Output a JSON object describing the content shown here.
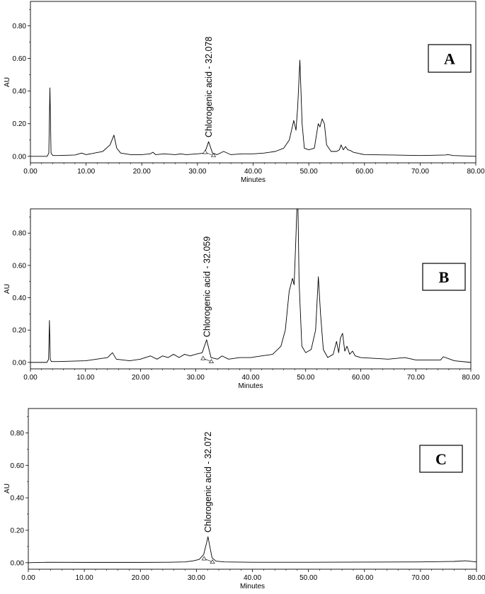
{
  "chart_data": [
    {
      "type": "line",
      "panel_label": "A",
      "xlabel": "Minutes",
      "ylabel": "AU",
      "xlim": [
        0,
        80
      ],
      "ylim": [
        -0.04,
        0.95
      ],
      "xticks": [
        0,
        10,
        20,
        30,
        40,
        50,
        60,
        70,
        80
      ],
      "xtick_labels": [
        "0.00",
        "10.00",
        "20.00",
        "30.00",
        "40.00",
        "50.00",
        "60.00",
        "70.00",
        "80.00"
      ],
      "yticks": [
        0,
        0.2,
        0.4,
        0.6,
        0.8
      ],
      "ytick_labels": [
        "0.00",
        "0.20",
        "0.40",
        "0.60",
        "0.80"
      ],
      "annotation": {
        "text": "Chlorogenic acid - 32.078",
        "x": 32.078,
        "y": 0.09
      },
      "x": [
        0,
        3.0,
        3.3,
        3.5,
        3.7,
        4.0,
        5,
        8,
        9.2,
        10,
        13,
        14.3,
        15.0,
        15.5,
        16.2,
        18,
        20,
        21.5,
        22,
        22.5,
        24,
        26,
        27,
        28,
        30,
        31.3,
        32.0,
        32.7,
        33.5,
        34.7,
        36,
        38,
        40,
        42,
        44,
        45.5,
        46.5,
        47.3,
        47.7,
        48.0,
        48.4,
        48.8,
        49.2,
        50,
        51,
        51.7,
        52.0,
        52.4,
        52.8,
        53.2,
        54,
        55,
        55.5,
        55.8,
        56.2,
        56.6,
        57,
        57.5,
        58,
        60,
        65,
        70,
        74.5,
        75,
        76,
        80
      ],
      "y": [
        0,
        0,
        0.02,
        0.42,
        0.02,
        0.005,
        0.005,
        0.008,
        0.02,
        0.01,
        0.03,
        0.07,
        0.13,
        0.05,
        0.02,
        0.01,
        0.01,
        0.015,
        0.025,
        0.01,
        0.015,
        0.01,
        0.015,
        0.01,
        0.015,
        0.02,
        0.09,
        0.02,
        0.01,
        0.03,
        0.01,
        0.015,
        0.015,
        0.02,
        0.03,
        0.05,
        0.1,
        0.22,
        0.16,
        0.3,
        0.59,
        0.2,
        0.05,
        0.04,
        0.05,
        0.2,
        0.18,
        0.23,
        0.2,
        0.07,
        0.03,
        0.03,
        0.04,
        0.07,
        0.04,
        0.06,
        0.04,
        0.035,
        0.025,
        0.01,
        0.008,
        0.005,
        0.008,
        0.01,
        0.005,
        0
      ]
    },
    {
      "type": "line",
      "panel_label": "B",
      "xlabel": "Minutes",
      "ylabel": "AU",
      "xlim": [
        0,
        80
      ],
      "ylim": [
        -0.04,
        0.95
      ],
      "xticks": [
        0,
        10,
        20,
        30,
        40,
        50,
        60,
        70,
        80
      ],
      "xtick_labels": [
        "0.00",
        "10.00",
        "20.00",
        "30.00",
        "40.00",
        "50.00",
        "60.00",
        "70.00",
        "80.00"
      ],
      "yticks": [
        0,
        0.2,
        0.4,
        0.6,
        0.8
      ],
      "ytick_labels": [
        "0.00",
        "0.20",
        "0.40",
        "0.60",
        "0.80"
      ],
      "annotation": {
        "text": "Chlorogenic acid - 32.059",
        "x": 32.059,
        "y": 0.13
      },
      "x": [
        0,
        3.0,
        3.3,
        3.45,
        3.6,
        3.8,
        5,
        10,
        14,
        14.9,
        15.6,
        18,
        20,
        21.8,
        23,
        24,
        25,
        26,
        27,
        28,
        29,
        30,
        31.2,
        32.0,
        32.8,
        34,
        34.8,
        36,
        38,
        40,
        42,
        44,
        45.5,
        46.3,
        47,
        47.6,
        47.9,
        48.2,
        48.4,
        48.6,
        48.8,
        49.3,
        50,
        51,
        51.8,
        52.3,
        52.7,
        53.2,
        54,
        55,
        55.6,
        56,
        56.3,
        56.7,
        57.1,
        57.5,
        58,
        58.5,
        59,
        60,
        65,
        68,
        70,
        74.5,
        75,
        77,
        80
      ],
      "y": [
        0,
        0,
        0.02,
        0.26,
        0.02,
        0.005,
        0.005,
        0.01,
        0.03,
        0.06,
        0.02,
        0.01,
        0.02,
        0.04,
        0.02,
        0.04,
        0.03,
        0.05,
        0.03,
        0.05,
        0.04,
        0.05,
        0.06,
        0.14,
        0.03,
        0.02,
        0.04,
        0.02,
        0.03,
        0.03,
        0.04,
        0.05,
        0.1,
        0.2,
        0.44,
        0.52,
        0.48,
        0.75,
        0.97,
        0.97,
        0.5,
        0.1,
        0.06,
        0.08,
        0.2,
        0.53,
        0.3,
        0.08,
        0.03,
        0.05,
        0.13,
        0.06,
        0.15,
        0.18,
        0.07,
        0.1,
        0.05,
        0.07,
        0.04,
        0.03,
        0.02,
        0.03,
        0.015,
        0.015,
        0.035,
        0.01,
        0
      ]
    },
    {
      "type": "line",
      "panel_label": "C",
      "xlabel": "Minutes",
      "ylabel": "AU",
      "xlim": [
        0,
        80
      ],
      "ylim": [
        -0.04,
        0.95
      ],
      "xticks": [
        0,
        10,
        20,
        30,
        40,
        50,
        60,
        70,
        80
      ],
      "xtick_labels": [
        "0.00",
        "10.00",
        "20.00",
        "30.00",
        "40.00",
        "50.00",
        "60.00",
        "70.00",
        "80.00"
      ],
      "yticks": [
        0,
        0.2,
        0.4,
        0.6,
        0.8
      ],
      "ytick_labels": [
        "0.00",
        "0.20",
        "0.40",
        "0.60",
        "0.80"
      ],
      "annotation": {
        "text": "Chlorogenic acid - 32.072",
        "x": 32.072,
        "y": 0.16
      },
      "x": [
        0,
        3.5,
        10,
        20,
        25,
        28,
        29.5,
        30.5,
        31.3,
        31.8,
        32.07,
        32.4,
        32.8,
        33.5,
        35,
        40,
        50,
        60,
        70,
        76,
        78,
        80
      ],
      "y": [
        0,
        0.003,
        0.002,
        0.002,
        0.003,
        0.005,
        0.012,
        0.02,
        0.05,
        0.12,
        0.16,
        0.1,
        0.03,
        0.01,
        0.005,
        0.003,
        0.003,
        0.004,
        0.005,
        0.008,
        0.012,
        0.005
      ]
    }
  ]
}
